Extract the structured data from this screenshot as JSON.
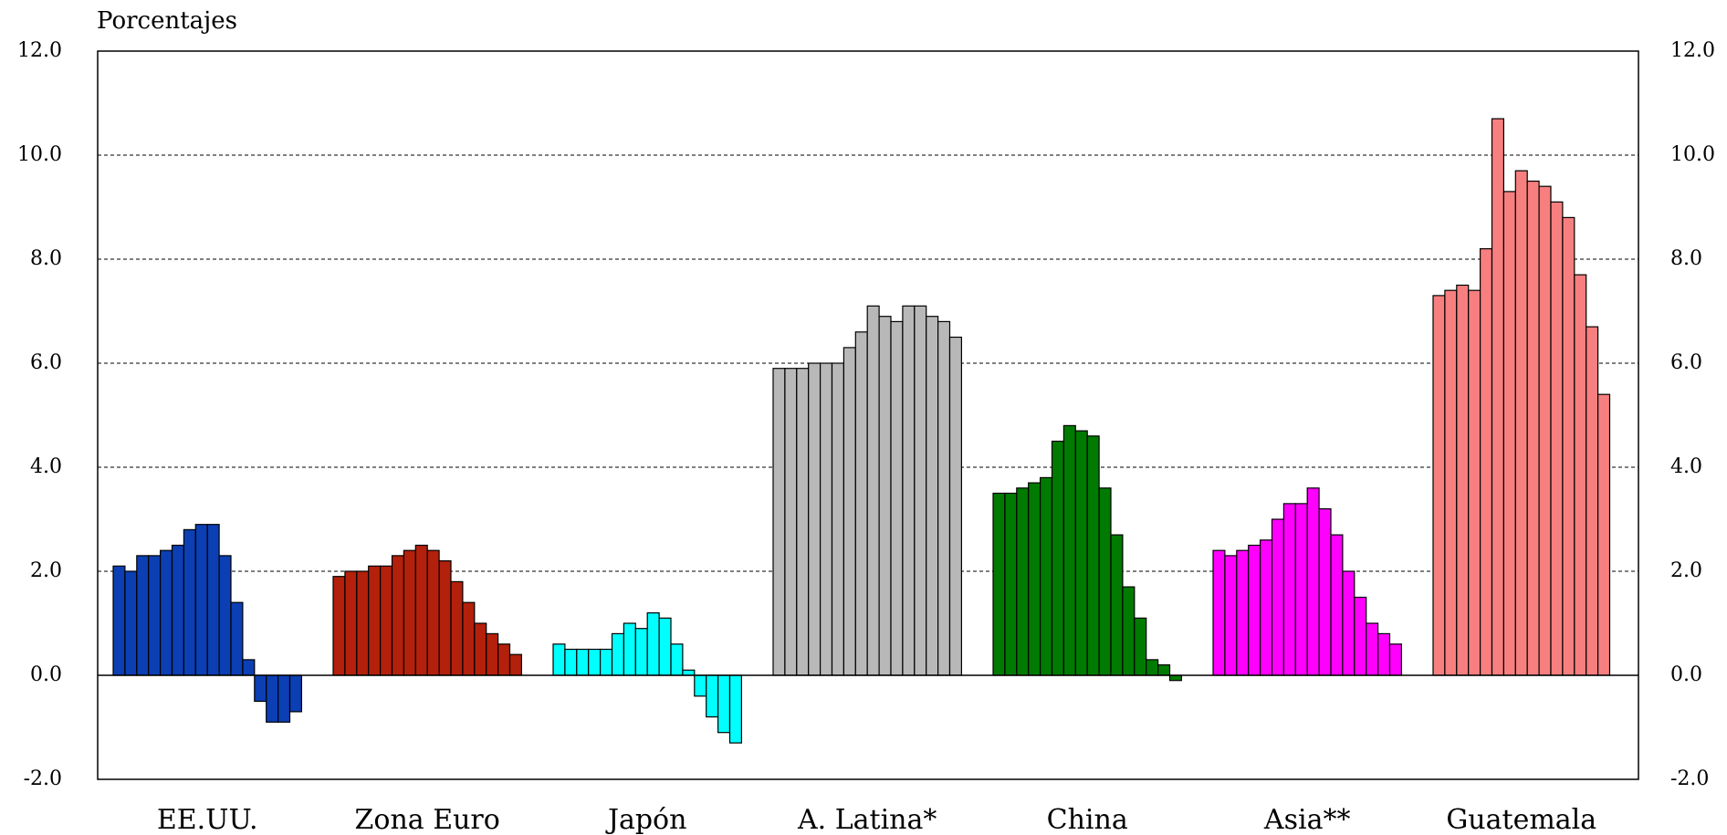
{
  "chart_data": {
    "type": "bar",
    "title": "Porcentajes",
    "groups": [
      {
        "name": "EE.UU.",
        "color": "#0b3fb3",
        "values": [
          2.1,
          2.0,
          2.3,
          2.3,
          2.4,
          2.5,
          2.8,
          2.9,
          2.9,
          2.3,
          1.4,
          0.3,
          -0.5,
          -0.9,
          -0.9,
          -0.7
        ]
      },
      {
        "name": "Zona Euro",
        "color": "#b3200b",
        "values": [
          1.9,
          2.0,
          2.0,
          2.1,
          2.1,
          2.3,
          2.4,
          2.5,
          2.4,
          2.2,
          1.8,
          1.4,
          1.0,
          0.8,
          0.6,
          0.4
        ]
      },
      {
        "name": "Japón",
        "color": "#00ffff",
        "values": [
          0.6,
          0.5,
          0.5,
          0.5,
          0.5,
          0.8,
          1.0,
          0.9,
          1.2,
          1.1,
          0.6,
          0.1,
          -0.4,
          -0.8,
          -1.1,
          -1.3
        ]
      },
      {
        "name": "A. Latina*",
        "color": "#b8b8b8",
        "values": [
          5.9,
          5.9,
          5.9,
          6.0,
          6.0,
          6.0,
          6.3,
          6.6,
          7.1,
          6.9,
          6.8,
          7.1,
          7.1,
          6.9,
          6.8,
          6.5
        ]
      },
      {
        "name": "China",
        "color": "#007a00",
        "values": [
          3.5,
          3.5,
          3.6,
          3.7,
          3.8,
          4.5,
          4.8,
          4.7,
          4.6,
          3.6,
          2.7,
          1.7,
          1.1,
          0.3,
          0.2,
          -0.1
        ]
      },
      {
        "name": "Asia**",
        "color": "#ff00ff",
        "values": [
          2.4,
          2.3,
          2.4,
          2.5,
          2.6,
          3.0,
          3.3,
          3.3,
          3.6,
          3.2,
          2.7,
          2.0,
          1.5,
          1.0,
          0.8,
          0.6
        ]
      },
      {
        "name": "Guatemala",
        "color": "#f77f7f",
        "values": [
          7.3,
          7.4,
          7.5,
          7.4,
          8.2,
          10.7,
          9.3,
          9.7,
          9.5,
          9.4,
          9.1,
          8.8,
          7.7,
          6.7,
          5.4
        ]
      }
    ],
    "ylim": [
      -2,
      12
    ],
    "yticks": [
      {
        "value": -2,
        "label": "-2.0"
      },
      {
        "value": 0,
        "label": "0.0"
      },
      {
        "value": 2,
        "label": "2.0"
      },
      {
        "value": 4,
        "label": "4.0"
      },
      {
        "value": 6,
        "label": "6.0"
      },
      {
        "value": 8,
        "label": "8.0"
      },
      {
        "value": 10,
        "label": "10.0"
      },
      {
        "value": 12,
        "label": "12.0"
      }
    ],
    "y2lim": [
      -2,
      12
    ],
    "y2ticks": [
      {
        "value": -2,
        "label": "-2.0"
      },
      {
        "value": 0,
        "label": "0.0"
      },
      {
        "value": 2,
        "label": "2.0"
      },
      {
        "value": 4,
        "label": "4.0"
      },
      {
        "value": 6,
        "label": "6.0"
      },
      {
        "value": 8,
        "label": "8.0"
      },
      {
        "value": 10,
        "label": "10.0"
      },
      {
        "value": 12,
        "label": "12.0"
      }
    ],
    "grid": true
  }
}
